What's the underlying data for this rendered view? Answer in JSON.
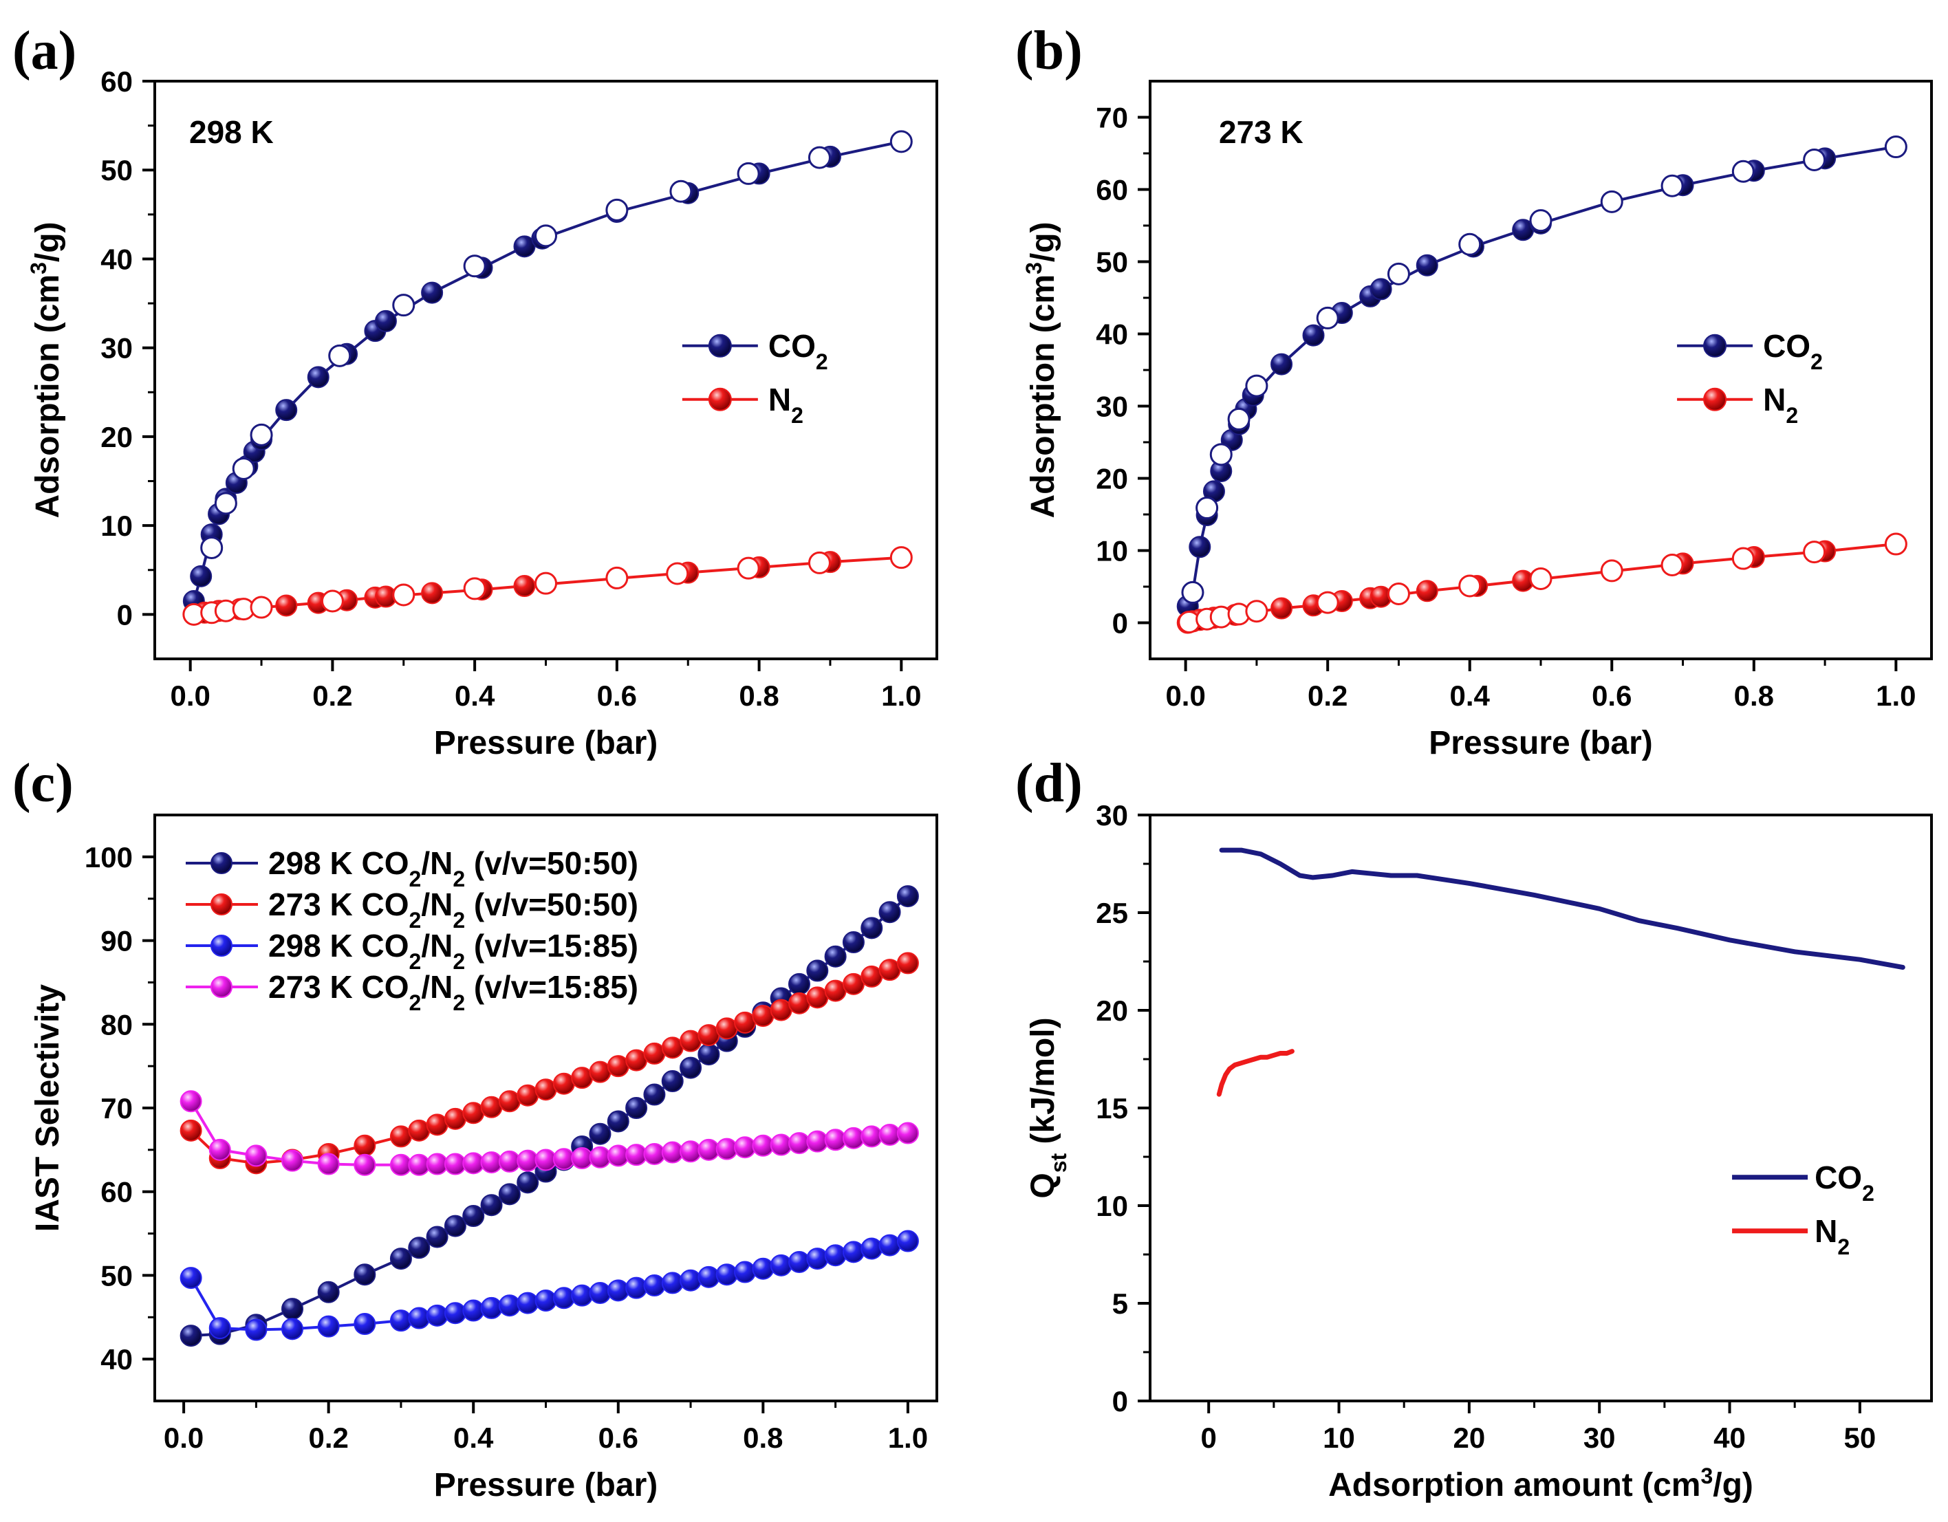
{
  "colors": {
    "co2": "#1b1b80",
    "n2": "#ee1b1b",
    "blue15": "#2424ee",
    "magenta15": "#ee22ee"
  },
  "chart_data": [
    {
      "id": "a",
      "type": "scatter",
      "panel_label": "(a)",
      "annotation": "298 K",
      "xlabel": "Pressure (bar)",
      "ylabel": "Adsorption (cm3/g)",
      "xlim": [
        -0.05,
        1.05
      ],
      "ylim": [
        -5,
        60
      ],
      "xticks": [
        "0.0",
        "0.2",
        "0.4",
        "0.6",
        "0.8",
        "1.0"
      ],
      "yticks": [
        "0",
        "10",
        "20",
        "30",
        "40",
        "50",
        "60"
      ],
      "legend_position": "center-right",
      "series": [
        {
          "name": "CO2",
          "color_key": "co2",
          "adsorption_x": [
            0.005,
            0.015,
            0.03,
            0.04,
            0.05,
            0.065,
            0.08,
            0.09,
            0.1,
            0.135,
            0.18,
            0.22,
            0.26,
            0.275,
            0.34,
            0.41,
            0.47,
            0.495,
            0.6,
            0.7,
            0.8,
            0.9,
            1.0
          ],
          "adsorption_y": [
            1.5,
            4.3,
            9.0,
            11.3,
            13.0,
            14.8,
            16.7,
            18.3,
            19.7,
            23.0,
            26.7,
            29.3,
            31.9,
            33.0,
            36.2,
            39.0,
            41.4,
            42.3,
            45.3,
            47.4,
            49.6,
            51.5,
            53.2
          ],
          "desorption_x": [
            0.03,
            0.05,
            0.075,
            0.1,
            0.21,
            0.3,
            0.4,
            0.5,
            0.6,
            0.69,
            0.785,
            0.885,
            1.0
          ],
          "desorption_y": [
            7.5,
            12.5,
            16.4,
            20.2,
            29.1,
            34.8,
            39.2,
            42.6,
            45.5,
            47.6,
            49.6,
            51.4,
            53.2
          ]
        },
        {
          "name": "N2",
          "color_key": "n2",
          "adsorption_x": [
            0.005,
            0.02,
            0.04,
            0.07,
            0.135,
            0.18,
            0.22,
            0.26,
            0.275,
            0.34,
            0.41,
            0.47,
            0.7,
            0.8,
            0.9,
            1.0
          ],
          "adsorption_y": [
            0.0,
            0.2,
            0.4,
            0.6,
            1.0,
            1.3,
            1.6,
            1.9,
            2.0,
            2.4,
            2.8,
            3.2,
            4.7,
            5.3,
            5.9,
            6.4
          ],
          "desorption_x": [
            0.005,
            0.03,
            0.05,
            0.075,
            0.1,
            0.2,
            0.3,
            0.4,
            0.5,
            0.6,
            0.685,
            0.785,
            0.885,
            1.0
          ],
          "desorption_y": [
            0.0,
            0.2,
            0.4,
            0.6,
            0.8,
            1.5,
            2.2,
            2.9,
            3.5,
            4.1,
            4.6,
            5.2,
            5.8,
            6.4
          ]
        }
      ]
    },
    {
      "id": "b",
      "type": "scatter",
      "panel_label": "(b)",
      "annotation": "273 K",
      "xlabel": "Pressure (bar)",
      "ylabel": "Adsorption (cm3/g)",
      "xlim": [
        -0.05,
        1.05
      ],
      "ylim": [
        -5,
        75
      ],
      "xticks": [
        "0.0",
        "0.2",
        "0.4",
        "0.6",
        "0.8",
        "1.0"
      ],
      "yticks": [
        "0",
        "10",
        "20",
        "30",
        "40",
        "50",
        "60",
        "70"
      ],
      "legend_position": "center-right",
      "series": [
        {
          "name": "CO2",
          "color_key": "co2",
          "adsorption_x": [
            0.003,
            0.01,
            0.02,
            0.03,
            0.04,
            0.05,
            0.065,
            0.075,
            0.085,
            0.095,
            0.135,
            0.18,
            0.22,
            0.26,
            0.275,
            0.34,
            0.405,
            0.475,
            0.5,
            0.6,
            0.7,
            0.8,
            0.9,
            1.0
          ],
          "adsorption_y": [
            2.3,
            4.2,
            10.5,
            14.9,
            18.2,
            21.0,
            25.3,
            27.5,
            29.6,
            31.5,
            35.8,
            39.8,
            42.9,
            45.2,
            46.2,
            49.5,
            52.1,
            54.4,
            55.3,
            58.3,
            60.6,
            62.6,
            64.3,
            65.9
          ],
          "desorption_x": [
            0.01,
            0.03,
            0.05,
            0.075,
            0.1,
            0.2,
            0.3,
            0.4,
            0.5,
            0.6,
            0.685,
            0.785,
            0.885,
            1.0
          ],
          "desorption_y": [
            4.2,
            15.9,
            23.3,
            28.2,
            32.8,
            42.2,
            48.3,
            52.4,
            55.7,
            58.3,
            60.5,
            62.5,
            64.1,
            65.9
          ]
        },
        {
          "name": "N2",
          "color_key": "n2",
          "adsorption_x": [
            0.003,
            0.01,
            0.02,
            0.04,
            0.07,
            0.135,
            0.18,
            0.22,
            0.26,
            0.275,
            0.34,
            0.41,
            0.475,
            0.7,
            0.8,
            0.9,
            1.0
          ],
          "adsorption_y": [
            0.0,
            0.2,
            0.4,
            0.7,
            1.1,
            2.0,
            2.4,
            3.0,
            3.4,
            3.6,
            4.4,
            5.1,
            5.8,
            8.2,
            9.1,
            9.9,
            10.9
          ],
          "desorption_x": [
            0.005,
            0.03,
            0.05,
            0.075,
            0.1,
            0.2,
            0.3,
            0.4,
            0.5,
            0.6,
            0.685,
            0.785,
            0.885,
            1.0
          ],
          "desorption_y": [
            0.1,
            0.5,
            0.8,
            1.2,
            1.6,
            2.8,
            4.0,
            5.1,
            6.1,
            7.2,
            8.0,
            8.9,
            9.8,
            10.9
          ]
        }
      ]
    },
    {
      "id": "c",
      "type": "line",
      "panel_label": "(c)",
      "xlabel": "Pressure (bar)",
      "ylabel": "IAST Selectivity",
      "xlim": [
        -0.04,
        1.04
      ],
      "ylim": [
        35,
        105
      ],
      "xticks": [
        "0.0",
        "0.2",
        "0.4",
        "0.6",
        "0.8",
        "1.0"
      ],
      "yticks": [
        "40",
        "50",
        "60",
        "70",
        "80",
        "90",
        "100"
      ],
      "legend_position": "top-left",
      "series": [
        {
          "name": "298 K CO2/N2 (v/v=50:50)",
          "color_key": "co2",
          "x": [
            0.01,
            0.05,
            0.1,
            0.15,
            0.2,
            0.25,
            0.3,
            0.325,
            0.35,
            0.375,
            0.4,
            0.425,
            0.45,
            0.475,
            0.5,
            0.525,
            0.55,
            0.575,
            0.6,
            0.625,
            0.65,
            0.675,
            0.7,
            0.725,
            0.75,
            0.775,
            0.8,
            0.825,
            0.85,
            0.875,
            0.9,
            0.925,
            0.95,
            0.975,
            1.0
          ],
          "y": [
            42.8,
            43.0,
            44.1,
            46.0,
            48.0,
            50.1,
            52.0,
            53.3,
            54.6,
            55.9,
            57.1,
            58.4,
            59.7,
            61.1,
            62.4,
            63.8,
            65.4,
            66.9,
            68.4,
            70.0,
            71.6,
            73.2,
            74.8,
            76.4,
            78.0,
            79.7,
            81.4,
            83.1,
            84.8,
            86.4,
            88.1,
            89.8,
            91.5,
            93.4,
            95.3
          ]
        },
        {
          "name": "273 K CO2/N2 (v/v=50:50)",
          "color_key": "n2",
          "x": [
            0.01,
            0.05,
            0.1,
            0.15,
            0.2,
            0.25,
            0.3,
            0.325,
            0.35,
            0.375,
            0.4,
            0.425,
            0.45,
            0.475,
            0.5,
            0.525,
            0.55,
            0.575,
            0.6,
            0.625,
            0.65,
            0.675,
            0.7,
            0.725,
            0.75,
            0.775,
            0.8,
            0.825,
            0.85,
            0.875,
            0.9,
            0.925,
            0.95,
            0.975,
            1.0
          ],
          "y": [
            67.3,
            64.0,
            63.4,
            63.8,
            64.5,
            65.5,
            66.6,
            67.3,
            68.0,
            68.7,
            69.4,
            70.1,
            70.8,
            71.5,
            72.2,
            72.9,
            73.6,
            74.3,
            75.0,
            75.7,
            76.5,
            77.2,
            78.0,
            78.7,
            79.5,
            80.2,
            81.0,
            81.7,
            82.5,
            83.2,
            84.0,
            84.8,
            85.7,
            86.5,
            87.3
          ]
        },
        {
          "name": "298 K CO2/N2 (v/v=15:85)",
          "color_key": "blue15",
          "x": [
            0.01,
            0.05,
            0.1,
            0.15,
            0.2,
            0.25,
            0.3,
            0.325,
            0.35,
            0.375,
            0.4,
            0.425,
            0.45,
            0.475,
            0.5,
            0.525,
            0.55,
            0.575,
            0.6,
            0.625,
            0.65,
            0.675,
            0.7,
            0.725,
            0.75,
            0.775,
            0.8,
            0.825,
            0.85,
            0.875,
            0.9,
            0.925,
            0.95,
            0.975,
            1.0
          ],
          "y": [
            49.7,
            43.7,
            43.5,
            43.6,
            43.9,
            44.2,
            44.6,
            44.9,
            45.2,
            45.5,
            45.8,
            46.1,
            46.4,
            46.7,
            47.0,
            47.3,
            47.6,
            47.9,
            48.2,
            48.5,
            48.8,
            49.1,
            49.4,
            49.8,
            50.1,
            50.4,
            50.8,
            51.2,
            51.6,
            52.0,
            52.4,
            52.8,
            53.2,
            53.6,
            54.1
          ]
        },
        {
          "name": "273 K CO2/N2 (v/v=15:85)",
          "color_key": "magenta15",
          "x": [
            0.01,
            0.05,
            0.1,
            0.15,
            0.2,
            0.25,
            0.3,
            0.325,
            0.35,
            0.375,
            0.4,
            0.425,
            0.45,
            0.475,
            0.5,
            0.525,
            0.55,
            0.575,
            0.6,
            0.625,
            0.65,
            0.675,
            0.7,
            0.725,
            0.75,
            0.775,
            0.8,
            0.825,
            0.85,
            0.875,
            0.9,
            0.925,
            0.95,
            0.975,
            1.0
          ],
          "y": [
            70.8,
            65.0,
            64.3,
            63.7,
            63.3,
            63.2,
            63.2,
            63.2,
            63.3,
            63.3,
            63.4,
            63.5,
            63.6,
            63.7,
            63.8,
            63.9,
            64.0,
            64.1,
            64.3,
            64.4,
            64.5,
            64.7,
            64.8,
            65.0,
            65.1,
            65.3,
            65.5,
            65.6,
            65.8,
            66.0,
            66.2,
            66.4,
            66.6,
            66.8,
            67.0
          ]
        }
      ]
    },
    {
      "id": "d",
      "type": "line",
      "panel_label": "(d)",
      "xlabel": "Adsorption amount (cm3/g)",
      "ylabel": "Qst (kJ/mol)",
      "xlim": [
        -4.5,
        55.5
      ],
      "ylim": [
        0,
        30
      ],
      "xticks": [
        "0",
        "10",
        "20",
        "30",
        "40",
        "50"
      ],
      "yticks": [
        "0",
        "5",
        "10",
        "15",
        "20",
        "25",
        "30"
      ],
      "legend_position": "center-right",
      "series": [
        {
          "name": "CO2",
          "color_key": "co2",
          "x": [
            1.0,
            2.5,
            4.0,
            5.5,
            7.0,
            8.0,
            9.5,
            11.0,
            12.5,
            14.0,
            16.0,
            20.0,
            25.0,
            30.0,
            33.0,
            36.0,
            40.0,
            45.0,
            50.0,
            53.3
          ],
          "y": [
            28.2,
            28.2,
            28.0,
            27.5,
            26.9,
            26.8,
            26.9,
            27.1,
            27.0,
            26.9,
            26.9,
            26.5,
            25.9,
            25.2,
            24.6,
            24.2,
            23.6,
            23.0,
            22.6,
            22.2
          ]
        },
        {
          "name": "N2",
          "color_key": "n2",
          "x": [
            0.8,
            1.0,
            1.3,
            1.6,
            2.0,
            2.5,
            3.0,
            3.5,
            4.0,
            4.5,
            5.0,
            5.5,
            6.0,
            6.4
          ],
          "y": [
            15.7,
            16.2,
            16.7,
            17.0,
            17.2,
            17.3,
            17.4,
            17.5,
            17.6,
            17.6,
            17.7,
            17.8,
            17.8,
            17.9
          ]
        }
      ]
    }
  ]
}
